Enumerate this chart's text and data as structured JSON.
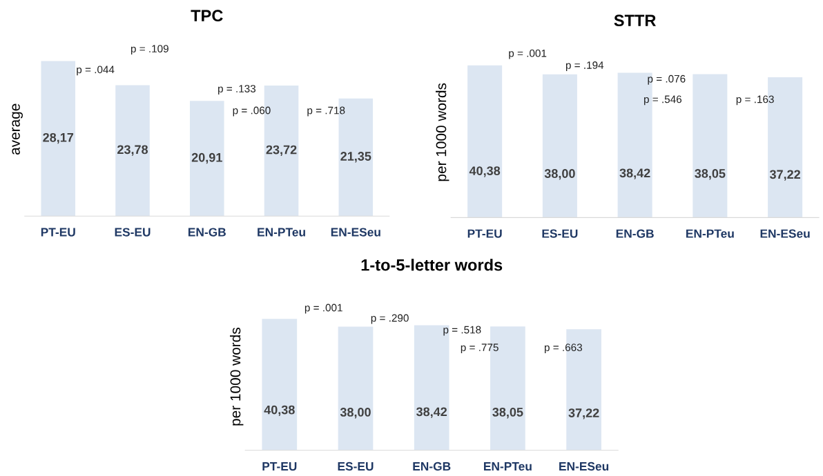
{
  "chart_data": [
    {
      "type": "bar",
      "title": "TPC",
      "ylabel": "average",
      "categories": [
        "PT-EU",
        "ES-EU",
        "EN-GB",
        "EN-PTeu",
        "EN-ESeu"
      ],
      "values": [
        28.17,
        23.78,
        20.91,
        23.72,
        21.35
      ],
      "value_labels": [
        "28,17",
        "23,78",
        "20,91",
        "23,72",
        "21,35"
      ],
      "color": "#dce6f2",
      "tick_labels": "x",
      "grid": false,
      "legend": false,
      "annotations": [
        "p = .109",
        "p = .044",
        "p = .133",
        "p = .060",
        "p = .718"
      ]
    },
    {
      "type": "bar",
      "title": "STTR",
      "ylabel": "per 1000 words",
      "categories": [
        "PT-EU",
        "ES-EU",
        "EN-GB",
        "EN-PTeu",
        "EN-ESeu"
      ],
      "values": [
        40.38,
        38.0,
        38.42,
        38.05,
        37.22
      ],
      "value_labels": [
        "40,38",
        "38,00",
        "38,42",
        "38,05",
        "37,22"
      ],
      "color": "#dce6f2",
      "tick_labels": "x",
      "grid": false,
      "legend": false,
      "annotations": [
        "p = .001",
        "p = .194",
        "p = .076",
        "p = .546",
        "p = .163"
      ]
    },
    {
      "type": "bar",
      "title": "1-to-5-letter words",
      "ylabel": "per 1000 words",
      "categories": [
        "PT-EU",
        "ES-EU",
        "EN-GB",
        "EN-PTeu",
        "EN-ESeu"
      ],
      "values": [
        40.38,
        38.0,
        38.42,
        38.05,
        37.22
      ],
      "value_labels": [
        "40,38",
        "38,00",
        "38,42",
        "38,05",
        "37,22"
      ],
      "color": "#dce6f2",
      "tick_labels": "x",
      "grid": false,
      "legend": false,
      "annotations": [
        "p = .001",
        "p = .290",
        "p = .518",
        "p = .775",
        "p = .663"
      ]
    }
  ]
}
